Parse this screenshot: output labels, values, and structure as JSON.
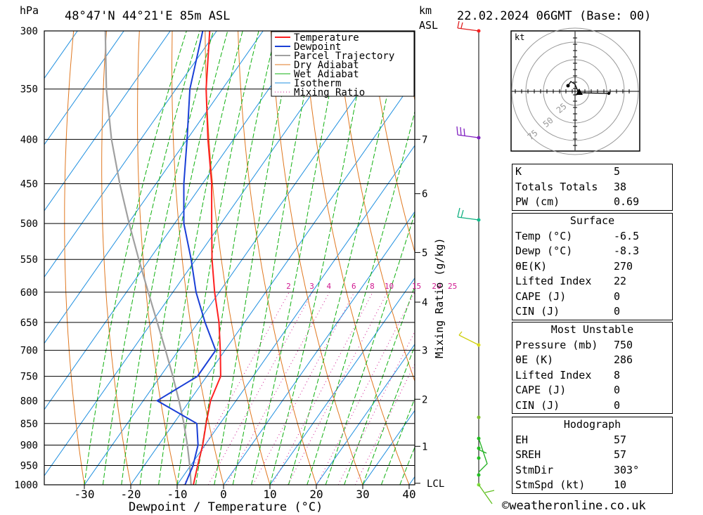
{
  "header": {
    "hpa_label": "hPa",
    "location": "48°47'N  44°21'E  85m  ASL",
    "km_label": "km",
    "asl_label": "ASL",
    "datetime": "22.02.2024  06GMT  (Base: 00)"
  },
  "chart_data": {
    "type": "skew-t",
    "xlabel": "Dewpoint / Temperature (°C)",
    "ylabel": "hPa",
    "right_ylabel": "Mixing Ratio (g/kg)",
    "x_ticks": [
      "-30",
      "-20",
      "-10",
      "0",
      "10",
      "20",
      "30",
      "40"
    ],
    "x_tick_values": [
      -30,
      -20,
      -10,
      0,
      10,
      20,
      30,
      40
    ],
    "pressure_levels": [
      300,
      350,
      400,
      450,
      500,
      550,
      600,
      650,
      700,
      750,
      800,
      850,
      900,
      950,
      1000
    ],
    "pressure_labels": [
      "300",
      "350",
      "400",
      "450",
      "500",
      "550",
      "600",
      "650",
      "700",
      "750",
      "800",
      "850",
      "900",
      "950",
      "1000"
    ],
    "km_ticks": [
      {
        "label": "7",
        "p": 400
      },
      {
        "label": "6",
        "p": 462
      },
      {
        "label": "5",
        "p": 540
      },
      {
        "label": "4",
        "p": 616
      },
      {
        "label": "3",
        "p": 700
      },
      {
        "label": "2",
        "p": 797
      },
      {
        "label": "1",
        "p": 903
      },
      {
        "label": "LCL",
        "p": 996
      }
    ],
    "mixing_ratio_labels": [
      "2",
      "3",
      "4",
      "6",
      "8",
      "10",
      "15",
      "20",
      "25"
    ],
    "mixing_ratio_values": [
      2,
      3,
      4,
      6,
      8,
      10,
      15,
      20,
      25
    ],
    "temperature": [
      [
        1000,
        -6.5
      ],
      [
        950,
        -8.5
      ],
      [
        900,
        -10.5
      ],
      [
        850,
        -13
      ],
      [
        800,
        -15.5
      ],
      [
        750,
        -17
      ],
      [
        700,
        -21
      ],
      [
        650,
        -25.5
      ],
      [
        600,
        -31
      ],
      [
        550,
        -36.5
      ],
      [
        500,
        -42
      ],
      [
        450,
        -48
      ],
      [
        400,
        -55.5
      ],
      [
        350,
        -63.5
      ],
      [
        300,
        -71.5
      ]
    ],
    "dewpoint": [
      [
        1000,
        -8.3
      ],
      [
        950,
        -9.5
      ],
      [
        900,
        -11.5
      ],
      [
        850,
        -15
      ],
      [
        800,
        -27
      ],
      [
        750,
        -22
      ],
      [
        700,
        -22
      ],
      [
        650,
        -28.5
      ],
      [
        600,
        -35
      ],
      [
        550,
        -41
      ],
      [
        500,
        -48
      ],
      [
        450,
        -54
      ],
      [
        400,
        -60
      ],
      [
        350,
        -67
      ],
      [
        300,
        -73
      ]
    ],
    "parcel": [
      [
        1000,
        -7
      ],
      [
        950,
        -10.2
      ],
      [
        900,
        -13.8
      ],
      [
        850,
        -17.8
      ],
      [
        800,
        -22.3
      ],
      [
        750,
        -27.3
      ],
      [
        700,
        -32.8
      ],
      [
        650,
        -38.8
      ],
      [
        600,
        -45.3
      ],
      [
        550,
        -52.3
      ],
      [
        500,
        -59.8
      ],
      [
        450,
        -67.8
      ],
      [
        400,
        -76.3
      ],
      [
        350,
        -85
      ],
      [
        300,
        -94
      ]
    ],
    "legend": [
      "Temperature",
      "Dewpoint",
      "Parcel Trajectory",
      "Dry Adiabat",
      "Wet Adiabat",
      "Isotherm",
      "Mixing Ratio"
    ]
  },
  "colors": {
    "temperature": "#ff2020",
    "dewpoint": "#1a3fd6",
    "parcel": "#a0a0a0",
    "dry_adiabat": "#e07820",
    "wet_adiabat": "#10b010",
    "isotherm": "#2090e0",
    "mixing_ratio": "#d01890"
  },
  "hodograph": {
    "unit": "kt",
    "ring_labels": [
      "25",
      "50",
      "75"
    ]
  },
  "indices": {
    "rows": [
      {
        "label": "K",
        "value": "5"
      },
      {
        "label": "Totals Totals",
        "value": "38"
      },
      {
        "label": "PW (cm)",
        "value": "0.69"
      }
    ]
  },
  "surface": {
    "title": "Surface",
    "rows": [
      {
        "label": "Temp (°C)",
        "value": "-6.5"
      },
      {
        "label": "Dewp (°C)",
        "value": "-8.3"
      },
      {
        "label": "θE(K)",
        "value": "270"
      },
      {
        "label": "Lifted Index",
        "value": "22"
      },
      {
        "label": "CAPE (J)",
        "value": "0"
      },
      {
        "label": "CIN (J)",
        "value": "0"
      }
    ]
  },
  "most_unstable": {
    "title": "Most Unstable",
    "rows": [
      {
        "label": "Pressure (mb)",
        "value": "750"
      },
      {
        "label": "θE (K)",
        "value": "286"
      },
      {
        "label": "Lifted Index",
        "value": "8"
      },
      {
        "label": "CAPE (J)",
        "value": "0"
      },
      {
        "label": "CIN (J)",
        "value": "0"
      }
    ]
  },
  "hodo_params": {
    "title": "Hodograph",
    "rows": [
      {
        "label": "EH",
        "value": "57"
      },
      {
        "label": "SREH",
        "value": "57"
      },
      {
        "label": "StmDir",
        "value": "303°"
      },
      {
        "label": "StmSpd (kt)",
        "value": "10"
      }
    ]
  },
  "footer": {
    "copyright": "©weatheronline.co.uk"
  }
}
